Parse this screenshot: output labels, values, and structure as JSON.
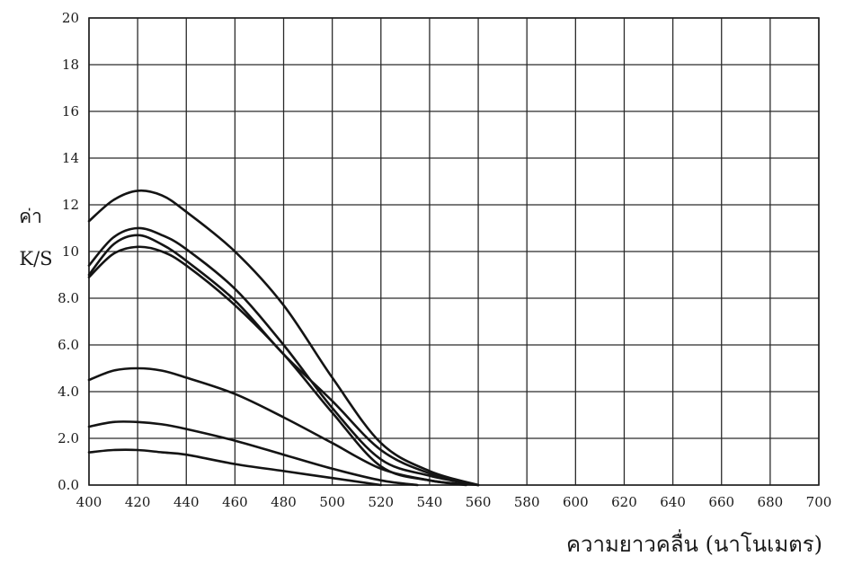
{
  "chart_data": {
    "type": "line",
    "title": "",
    "xlabel": "ความยาวคลื่น (นาโนเมตร)",
    "ylabel": [
      "ค่า",
      "K/S"
    ],
    "xlim": [
      400,
      700
    ],
    "ylim": [
      0,
      20
    ],
    "grid": true,
    "legend": "none",
    "x_ticks": [
      "400",
      "420",
      "440",
      "460",
      "480",
      "500",
      "520",
      "540",
      "560",
      "580",
      "600",
      "620",
      "640",
      "660",
      "680",
      "700"
    ],
    "y_ticks": [
      "0.0",
      "2.0",
      "4.0",
      "6.0",
      "8.0",
      "10",
      "12",
      "14",
      "16",
      "18",
      "20"
    ],
    "series": [
      {
        "x": [
          400,
          410,
          420,
          430,
          440,
          460,
          480,
          500,
          520,
          540,
          560
        ],
        "values": [
          11.3,
          12.2,
          12.6,
          12.4,
          11.7,
          10.0,
          7.7,
          4.6,
          1.8,
          0.6,
          0.0
        ]
      },
      {
        "x": [
          400,
          410,
          420,
          430,
          440,
          460,
          480,
          500,
          520,
          540,
          560
        ],
        "values": [
          9.4,
          10.6,
          11.0,
          10.7,
          10.1,
          8.4,
          6.0,
          3.3,
          1.1,
          0.4,
          0.0
        ]
      },
      {
        "x": [
          400,
          410,
          420,
          430,
          440,
          460,
          480,
          500,
          520,
          540,
          560
        ],
        "values": [
          9.0,
          10.3,
          10.7,
          10.3,
          9.6,
          7.9,
          5.6,
          3.6,
          1.5,
          0.5,
          0.0
        ]
      },
      {
        "x": [
          400,
          410,
          420,
          430,
          440,
          460,
          480,
          500,
          520,
          540,
          560
        ],
        "values": [
          8.9,
          9.9,
          10.2,
          10.0,
          9.4,
          7.7,
          5.6,
          3.1,
          0.8,
          0.2,
          0.0
        ]
      },
      {
        "x": [
          400,
          410,
          420,
          430,
          440,
          460,
          480,
          500,
          520,
          540,
          555
        ],
        "values": [
          4.5,
          4.9,
          5.0,
          4.9,
          4.6,
          3.9,
          2.9,
          1.8,
          0.7,
          0.2,
          0.0
        ]
      },
      {
        "x": [
          400,
          410,
          420,
          430,
          440,
          460,
          480,
          500,
          520,
          535
        ],
        "values": [
          2.5,
          2.7,
          2.7,
          2.6,
          2.4,
          1.9,
          1.3,
          0.7,
          0.2,
          0.0
        ]
      },
      {
        "x": [
          400,
          410,
          420,
          430,
          440,
          460,
          480,
          500,
          520
        ],
        "values": [
          1.4,
          1.5,
          1.5,
          1.4,
          1.3,
          0.9,
          0.6,
          0.3,
          0.0
        ]
      }
    ]
  }
}
